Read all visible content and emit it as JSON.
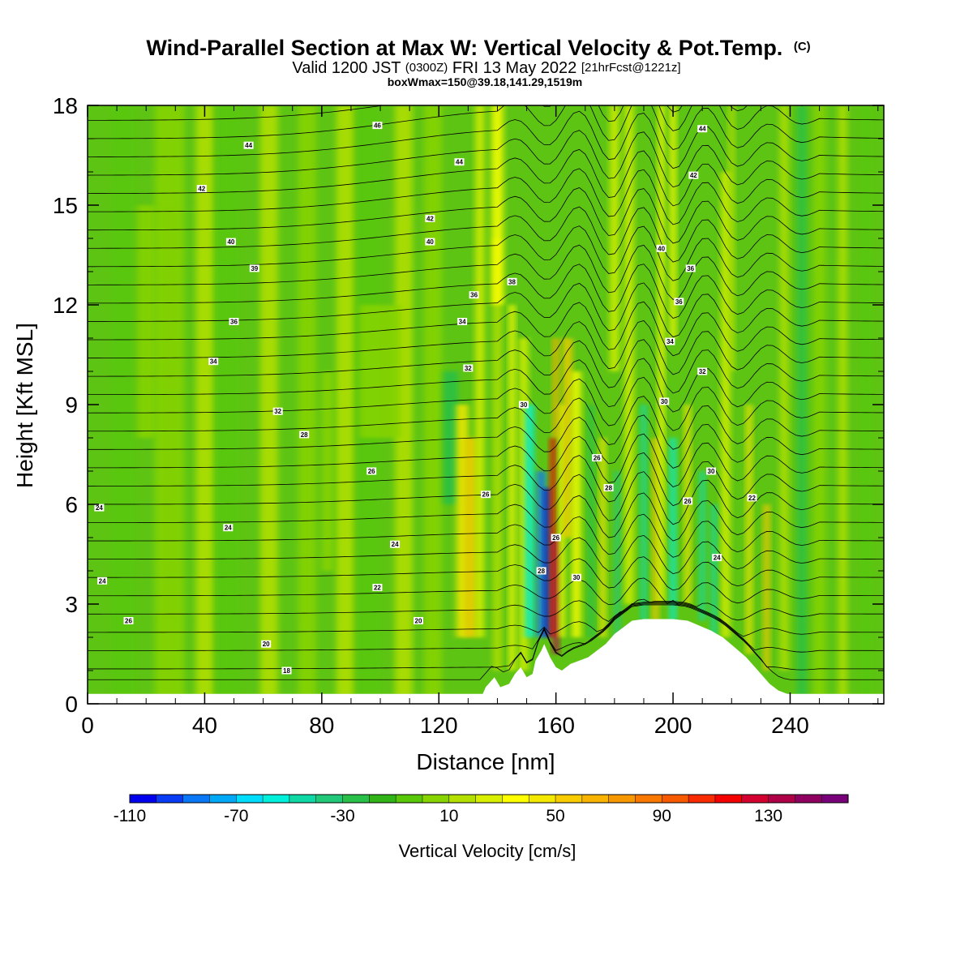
{
  "chart_data": {
    "type": "heatmap",
    "title": "Wind-Parallel Section at Max W: Vertical Velocity & Pot.Temp.",
    "title_suffix": "(C)",
    "subtitle": {
      "part1": "Valid 1200 JST",
      "part2": "(0300Z)",
      "part3": "FRI 13 May 2022",
      "part4": "[21hrFcst@1221z]"
    },
    "subtitle2": "boxWmax=150@39.18,141.29,1519m",
    "xlabel": "Distance [nm]",
    "ylabel": "Height [Kft MSL]",
    "xlim": [
      0,
      272
    ],
    "ylim": [
      0,
      18
    ],
    "x_ticks": [
      "0",
      "40",
      "80",
      "120",
      "160",
      "200",
      "240"
    ],
    "y_ticks": [
      "0",
      "3",
      "6",
      "9",
      "12",
      "15",
      "18"
    ],
    "colorbar": {
      "label": "Vertical Velocity [cm/s]",
      "min": -110,
      "max": 160,
      "step": 10,
      "tick_labels": [
        "-110",
        "-70",
        "-30",
        "10",
        "50",
        "90",
        "130"
      ],
      "colors": [
        "#0000ee",
        "#0a3cf6",
        "#0a78f6",
        "#00a8f8",
        "#00dcfc",
        "#00f0dc",
        "#10d8a4",
        "#20c878",
        "#28c048",
        "#30b418",
        "#58c808",
        "#88d400",
        "#b4e000",
        "#d8f000",
        "#ffff00",
        "#f4e800",
        "#f8cc00",
        "#f8b400",
        "#f89800",
        "#f87800",
        "#f85a00",
        "#f82c00",
        "#f40000",
        "#d40030",
        "#b00048",
        "#900060",
        "#780078"
      ]
    },
    "contour_label_values": [
      "46",
      "44",
      "44",
      "42",
      "42",
      "40",
      "40",
      "39",
      "38",
      "36",
      "36",
      "34",
      "34",
      "32",
      "32",
      "30",
      "28",
      "26",
      "26",
      "24",
      "24",
      "22",
      "24",
      "20",
      "20",
      "18",
      "30",
      "26",
      "28",
      "26",
      "40",
      "36",
      "36",
      "34",
      "32",
      "30",
      "44",
      "42",
      "22",
      "26",
      "24",
      "28",
      "30",
      "26",
      "24"
    ],
    "terrain_kft": [
      [
        0,
        0.3
      ],
      [
        135,
        0.3
      ],
      [
        136,
        0.5
      ],
      [
        139,
        0.8
      ],
      [
        141,
        0.5
      ],
      [
        144,
        0.6
      ],
      [
        146,
        0.9
      ],
      [
        148,
        1.1
      ],
      [
        150,
        0.8
      ],
      [
        152,
        0.9
      ],
      [
        153,
        1.3
      ],
      [
        155,
        1.6
      ],
      [
        156,
        1.8
      ],
      [
        157,
        1.6
      ],
      [
        158,
        1.4
      ],
      [
        160,
        1.1
      ],
      [
        162,
        1.0
      ],
      [
        165,
        1.2
      ],
      [
        168,
        1.3
      ],
      [
        171,
        1.4
      ],
      [
        174,
        1.6
      ],
      [
        177,
        1.8
      ],
      [
        180,
        2.1
      ],
      [
        183,
        2.3
      ],
      [
        186,
        2.5
      ],
      [
        190,
        2.55
      ],
      [
        195,
        2.55
      ],
      [
        200,
        2.55
      ],
      [
        205,
        2.5
      ],
      [
        209,
        2.35
      ],
      [
        213,
        2.2
      ],
      [
        217,
        2.0
      ],
      [
        221,
        1.7
      ],
      [
        225,
        1.4
      ],
      [
        229,
        1.0
      ],
      [
        233,
        0.6
      ],
      [
        236,
        0.4
      ],
      [
        239,
        0.3
      ],
      [
        272,
        0.3
      ]
    ]
  }
}
